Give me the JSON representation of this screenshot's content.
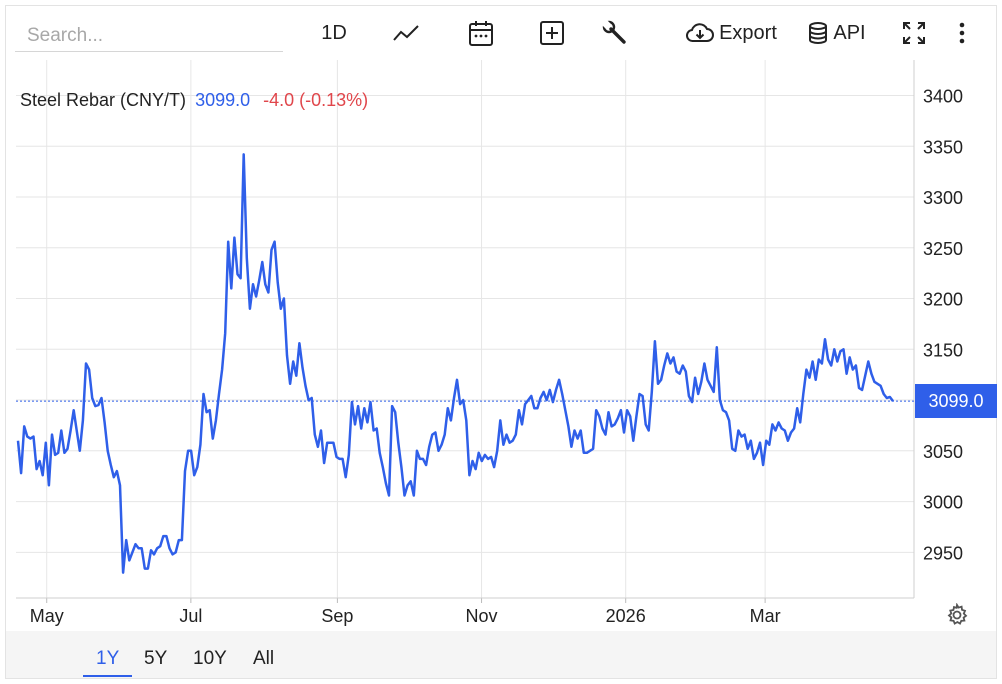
{
  "toolbar": {
    "search_placeholder": "Search...",
    "interval_label": "1D",
    "export_label": "Export",
    "api_label": "API",
    "icons": [
      "line-chart-icon",
      "calendar-icon",
      "add-box-icon",
      "wrench-icon",
      "cloud-download-icon",
      "database-icon",
      "fullscreen-icon",
      "more-vertical-icon"
    ]
  },
  "legend": {
    "name": "Steel Rebar (CNY/T)",
    "last": "3099.0",
    "change": "-4.0 (-0.13%)"
  },
  "price_tag": "3099.0",
  "ranges": [
    "1Y",
    "5Y",
    "10Y",
    "All"
  ],
  "active_range": "1Y",
  "colors": {
    "line": "#2f5fe9",
    "negative": "#e0464b",
    "grid": "#e6e6e6"
  },
  "chart_data": {
    "type": "line",
    "title": "Steel Rebar (CNY/T)",
    "ylim": [
      2905,
      3435
    ],
    "yticks": [
      2950,
      3000,
      3050,
      3100,
      3150,
      3200,
      3250,
      3300,
      3350,
      3400
    ],
    "xticks": [
      {
        "label": "May",
        "x": 13
      },
      {
        "label": "Jul",
        "x": 74
      },
      {
        "label": "Sep",
        "x": 136
      },
      {
        "label": "Nov",
        "x": 197
      },
      {
        "label": "2026",
        "x": 258
      },
      {
        "label": "Mar",
        "x": 317
      }
    ],
    "xlim": [
      0,
      380
    ],
    "last_value": 3099.0,
    "grid": true,
    "series": [
      {
        "values": [
          3060,
          3028,
          3074,
          3064,
          3062,
          3064,
          3032,
          3040,
          3026,
          3058,
          3016,
          3066,
          3046,
          3048,
          3070,
          3048,
          3052,
          3070,
          3090,
          3070,
          3050,
          3080,
          3136,
          3130,
          3102,
          3094,
          3095,
          3102,
          3078,
          3050,
          3036,
          3024,
          3030,
          3016,
          2930,
          2962,
          2942,
          2950,
          2958,
          2954,
          2954,
          2934,
          2934,
          2952,
          2948,
          2954,
          2956,
          2966,
          2966,
          2954,
          2948,
          2950,
          2962,
          2962,
          3030,
          3050,
          3050,
          3026,
          3034,
          3056,
          3106,
          3088,
          3090,
          3062,
          3080,
          3106,
          3130,
          3166,
          3256,
          3210,
          3260,
          3224,
          3220,
          3342,
          3240,
          3190,
          3214,
          3202,
          3218,
          3236,
          3214,
          3206,
          3248,
          3256,
          3216,
          3190,
          3200,
          3144,
          3116,
          3138,
          3124,
          3156,
          3132,
          3114,
          3100,
          3102,
          3066,
          3054,
          3070,
          3038,
          3058,
          3058,
          3058,
          3044,
          3042,
          3042,
          3024,
          3046,
          3098,
          3076,
          3094,
          3072,
          3092,
          3078,
          3098,
          3070,
          3072,
          3048,
          3034,
          3018,
          3006,
          3094,
          3088,
          3058,
          3034,
          3006,
          3016,
          3020,
          3006,
          3050,
          3042,
          3042,
          3036,
          3054,
          3066,
          3068,
          3050,
          3056,
          3066,
          3092,
          3080,
          3102,
          3120,
          3096,
          3100,
          3080,
          3026,
          3040,
          3032,
          3048,
          3040,
          3046,
          3042,
          3044,
          3034,
          3050,
          3080,
          3056,
          3066,
          3058,
          3060,
          3066,
          3090,
          3076,
          3096,
          3100,
          3104,
          3092,
          3092,
          3102,
          3108,
          3100,
          3110,
          3098,
          3110,
          3120,
          3106,
          3090,
          3074,
          3054,
          3070,
          3062,
          3070,
          3048,
          3048,
          3050,
          3052,
          3090,
          3084,
          3072,
          3066,
          3088,
          3074,
          3076,
          3082,
          3090,
          3068,
          3090,
          3084,
          3060,
          3084,
          3106,
          3104,
          3076,
          3070,
          3108,
          3158,
          3116,
          3120,
          3134,
          3146,
          3136,
          3142,
          3128,
          3126,
          3134,
          3128,
          3104,
          3098,
          3122,
          3106,
          3118,
          3136,
          3120,
          3114,
          3108,
          3152,
          3100,
          3090,
          3088,
          3080,
          3052,
          3050,
          3070,
          3064,
          3066,
          3052,
          3060,
          3042,
          3048,
          3058,
          3036,
          3060,
          3056,
          3076,
          3070,
          3078,
          3072,
          3070,
          3060,
          3068,
          3072,
          3092,
          3078,
          3106,
          3130,
          3122,
          3138,
          3120,
          3140,
          3136,
          3160,
          3140,
          3134,
          3150,
          3138,
          3148,
          3150,
          3126,
          3142,
          3130,
          3134,
          3112,
          3110,
          3124,
          3138,
          3126,
          3118,
          3116,
          3114,
          3106,
          3102,
          3103,
          3099
        ]
      }
    ]
  }
}
